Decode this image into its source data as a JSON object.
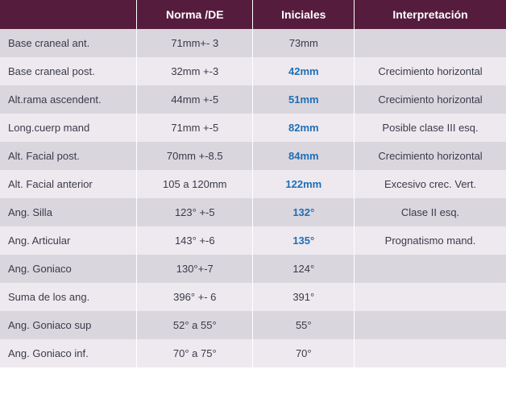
{
  "table": {
    "headers": {
      "label": "",
      "norma": "Norma /DE",
      "iniciales": "Iniciales",
      "interpretacion": "Interpretación"
    },
    "header_bg_color": "#561c3e",
    "header_text_color": "#ffffff",
    "row_odd_bg": "#dad6de",
    "row_even_bg": "#ede9ef",
    "highlight_color": "#1f6fb5",
    "text_color": "#3a3a4a",
    "font_size_header": 14,
    "font_size_cell": 13,
    "rows": [
      {
        "label": "Base craneal ant.",
        "norma": "71mm+- 3",
        "inicial": "73mm",
        "highlight": false,
        "interp": ""
      },
      {
        "label": "Base craneal post.",
        "norma": "32mm +-3",
        "inicial": "42mm",
        "highlight": true,
        "interp": "Crecimiento horizontal"
      },
      {
        "label": "Alt.rama ascendent.",
        "norma": "44mm +-5",
        "inicial": "51mm",
        "highlight": true,
        "interp": "Crecimiento horizontal"
      },
      {
        "label": "Long.cuerp mand",
        "norma": "71mm +-5",
        "inicial": "82mm",
        "highlight": true,
        "interp": "Posible clase III esq."
      },
      {
        "label": "Alt. Facial post.",
        "norma": "70mm +-8.5",
        "inicial": "84mm",
        "highlight": true,
        "interp": "Crecimiento horizontal"
      },
      {
        "label": "Alt. Facial anterior",
        "norma": "105 a 120mm",
        "inicial": "122mm",
        "highlight": true,
        "interp": "Excesivo crec.  Vert."
      },
      {
        "label": "Ang. Silla",
        "norma": "123° +-5",
        "inicial": "132°",
        "highlight": true,
        "interp": "Clase II esq."
      },
      {
        "label": "Ang. Articular",
        "norma": "143° +-6",
        "inicial": "135°",
        "highlight": true,
        "interp": "Prognatismo mand."
      },
      {
        "label": "Ang. Goniaco",
        "norma": "130°+-7",
        "inicial": "124°",
        "highlight": false,
        "interp": ""
      },
      {
        "label": "Suma de los ang.",
        "norma": "396° +- 6",
        "inicial": "391°",
        "highlight": false,
        "interp": ""
      },
      {
        "label": "Ang. Goniaco sup",
        "norma": "52° a 55°",
        "inicial": "55°",
        "highlight": false,
        "interp": ""
      },
      {
        "label": "Ang. Goniaco inf.",
        "norma": "70° a 75°",
        "inicial": "70°",
        "highlight": false,
        "interp": ""
      }
    ]
  }
}
